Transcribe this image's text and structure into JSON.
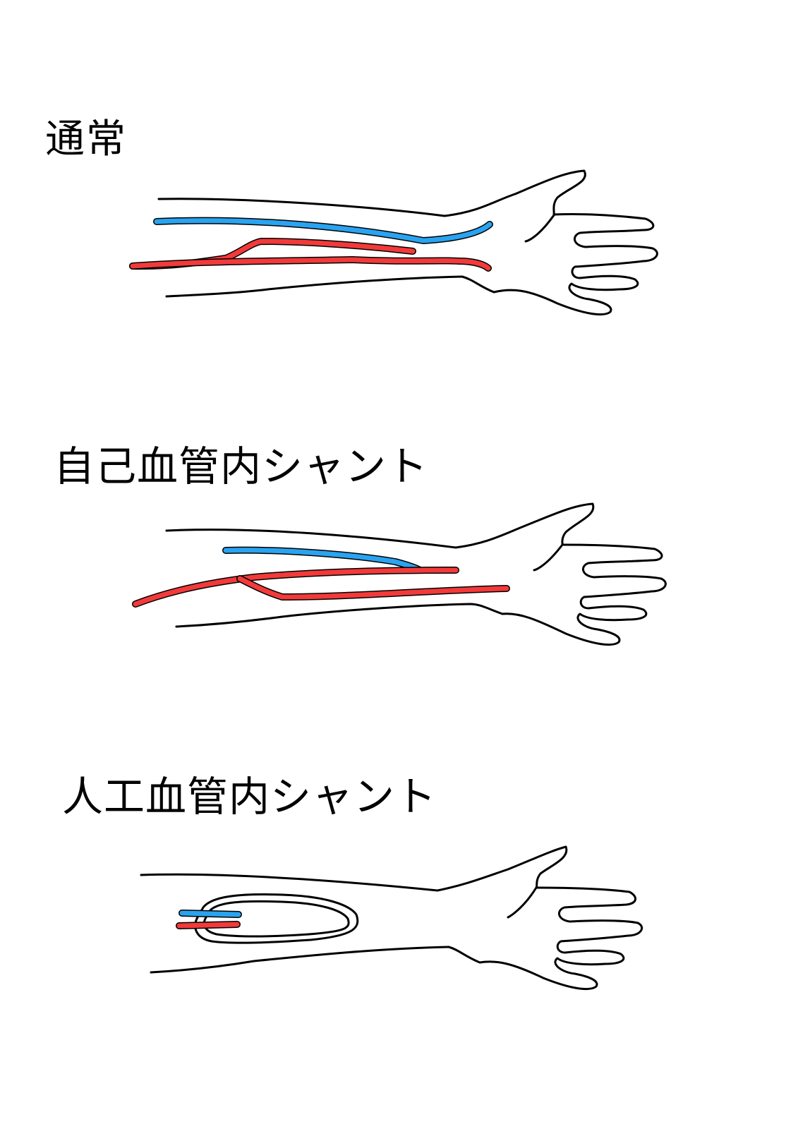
{
  "labels": {
    "normal": "通常",
    "native_shunt": "自己血管内シャント",
    "graft_shunt": "人工血管内シャント"
  },
  "colors": {
    "vein": "#2aa3f0",
    "artery": "#f23a3a",
    "outline": "#000000"
  }
}
